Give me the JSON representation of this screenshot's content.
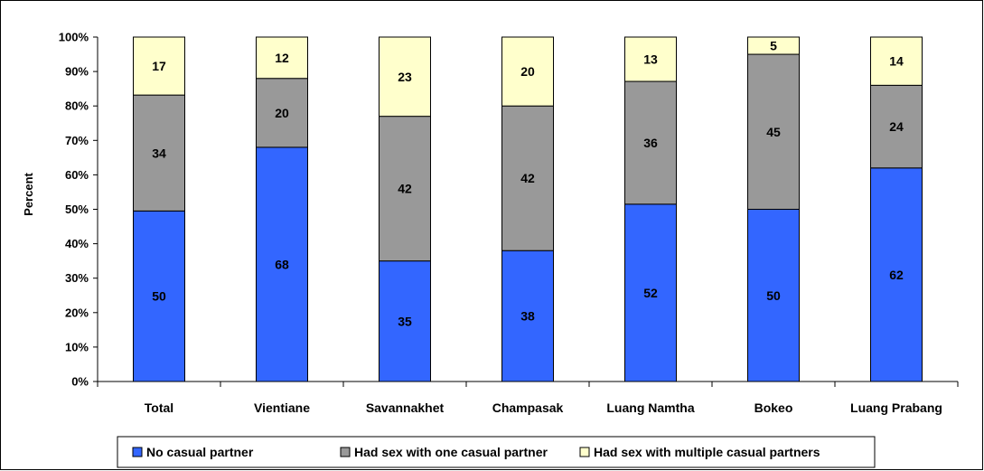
{
  "chart_data": {
    "type": "bar",
    "stacked": true,
    "percent_stacked": true,
    "title": "",
    "xlabel": "",
    "ylabel": "Percent",
    "ylim": [
      0,
      100
    ],
    "yticks": [
      "0%",
      "10%",
      "20%",
      "30%",
      "40%",
      "50%",
      "60%",
      "70%",
      "80%",
      "90%",
      "100%"
    ],
    "categories": [
      "Total",
      "Vientiane",
      "Savannakhet",
      "Champasak",
      "Luang Namtha",
      "Bokeo",
      "Luang Prabang"
    ],
    "series": [
      {
        "name": "No casual partner",
        "color": "#3366ff",
        "values": [
          50,
          68,
          35,
          38,
          52,
          50,
          62
        ]
      },
      {
        "name": "Had sex with one casual partner",
        "color": "#999999",
        "values": [
          34,
          20,
          42,
          42,
          36,
          45,
          24
        ]
      },
      {
        "name": "Had sex with multiple casual partners",
        "color": "#ffffcc",
        "values": [
          17,
          12,
          23,
          20,
          13,
          5,
          14
        ]
      }
    ],
    "grid": false,
    "legend_position": "bottom"
  }
}
